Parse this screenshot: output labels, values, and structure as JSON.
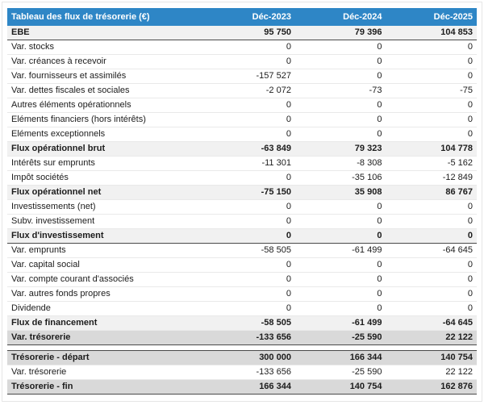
{
  "colors": {
    "header_bg": "#2e86c6",
    "header_text": "#ffffff",
    "total_row_bg": "#f1f1f1",
    "strong_row_bg": "#d9d9d9",
    "dark_border": "#4a4a4a"
  },
  "chart_data": {
    "type": "table",
    "title": "Tableau des flux de trésorerie (€)",
    "columns": [
      "Déc-2023",
      "Déc-2024",
      "Déc-2025"
    ],
    "rows": [
      {
        "label": "EBE",
        "values": [
          "95 750",
          "79 396",
          "104 853"
        ],
        "emphasis": "total",
        "borders": [
          "bottom"
        ]
      },
      {
        "label": "Var. stocks",
        "values": [
          "0",
          "0",
          "0"
        ],
        "emphasis": "normal"
      },
      {
        "label": "Var. créances à recevoir",
        "values": [
          "0",
          "0",
          "0"
        ],
        "emphasis": "normal"
      },
      {
        "label": "Var. fournisseurs et assimilés",
        "values": [
          "-157 527",
          "0",
          "0"
        ],
        "emphasis": "normal"
      },
      {
        "label": "Var. dettes fiscales et sociales",
        "values": [
          "-2 072",
          "-73",
          "-75"
        ],
        "emphasis": "normal"
      },
      {
        "label": "Autres éléments opérationnels",
        "values": [
          "0",
          "0",
          "0"
        ],
        "emphasis": "normal"
      },
      {
        "label": "Eléments financiers (hors intérêts)",
        "values": [
          "0",
          "0",
          "0"
        ],
        "emphasis": "normal"
      },
      {
        "label": "Eléments exceptionnels",
        "values": [
          "0",
          "0",
          "0"
        ],
        "emphasis": "normal"
      },
      {
        "label": "Flux opérationnel brut",
        "values": [
          "-63 849",
          "79 323",
          "104 778"
        ],
        "emphasis": "total",
        "borders": [
          "top"
        ]
      },
      {
        "label": "Intérêts sur emprunts",
        "values": [
          "-11 301",
          "-8 308",
          "-5 162"
        ],
        "emphasis": "normal"
      },
      {
        "label": "Impôt sociétés",
        "values": [
          "0",
          "-35 106",
          "-12 849"
        ],
        "emphasis": "normal"
      },
      {
        "label": "Flux opérationnel net",
        "values": [
          "-75 150",
          "35 908",
          "86 767"
        ],
        "emphasis": "total",
        "borders": [
          "top"
        ]
      },
      {
        "label": "Investissements (net)",
        "values": [
          "0",
          "0",
          "0"
        ],
        "emphasis": "normal"
      },
      {
        "label": "Subv. investissement",
        "values": [
          "0",
          "0",
          "0"
        ],
        "emphasis": "normal"
      },
      {
        "label": "Flux d'investissement",
        "values": [
          "0",
          "0",
          "0"
        ],
        "emphasis": "total",
        "borders": [
          "bottom"
        ]
      },
      {
        "label": "Var. emprunts",
        "values": [
          "-58 505",
          "-61 499",
          "-64 645"
        ],
        "emphasis": "normal"
      },
      {
        "label": "Var. capital social",
        "values": [
          "0",
          "0",
          "0"
        ],
        "emphasis": "normal"
      },
      {
        "label": "Var. compte courant d'associés",
        "values": [
          "0",
          "0",
          "0"
        ],
        "emphasis": "normal"
      },
      {
        "label": "Var. autres fonds propres",
        "values": [
          "0",
          "0",
          "0"
        ],
        "emphasis": "normal"
      },
      {
        "label": "Dividende",
        "values": [
          "0",
          "0",
          "0"
        ],
        "emphasis": "normal"
      },
      {
        "label": "Flux de financement",
        "values": [
          "-58 505",
          "-61 499",
          "-64 645"
        ],
        "emphasis": "total",
        "borders": [
          "top"
        ]
      },
      {
        "label": "Var. trésorerie",
        "values": [
          "-133 656",
          "-25 590",
          "22 122"
        ],
        "emphasis": "strong",
        "borders": [
          "bottom"
        ]
      },
      {
        "spacer": true
      },
      {
        "label": "Trésorerie - départ",
        "values": [
          "300 000",
          "166 344",
          "140 754"
        ],
        "emphasis": "strong",
        "borders": [
          "top"
        ]
      },
      {
        "label": "Var. trésorerie",
        "values": [
          "-133 656",
          "-25 590",
          "22 122"
        ],
        "emphasis": "normal"
      },
      {
        "label": "Trésorerie - fin",
        "values": [
          "166 344",
          "140 754",
          "162 876"
        ],
        "emphasis": "strong",
        "borders": [
          "top",
          "bottom"
        ]
      }
    ]
  }
}
